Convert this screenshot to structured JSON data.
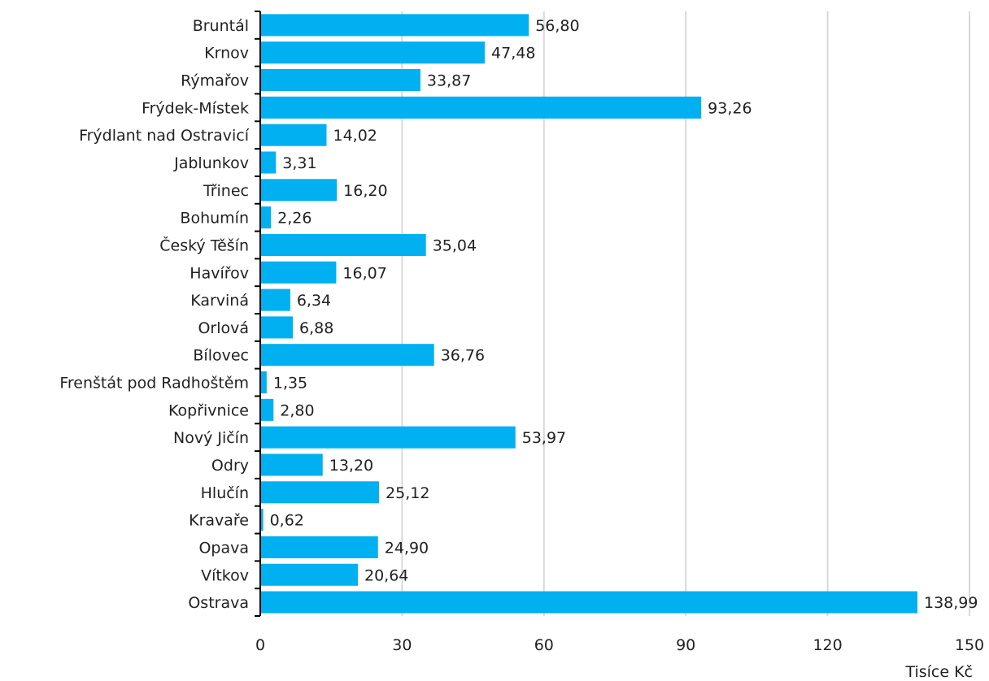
{
  "chart_data": {
    "type": "bar",
    "orientation": "horizontal",
    "categories": [
      "Bruntál",
      "Krnov",
      "Rýmařov",
      "Frýdek-Místek",
      "Frýdlant nad Ostravicí",
      "Jablunkov",
      "Třinec",
      "Bohumín",
      "Český Těšín",
      "Havířov",
      "Karviná",
      "Orlová",
      "Bílovec",
      "Frenštát pod Radhoštěm",
      "Kopřivnice",
      "Nový Jičín",
      "Odry",
      "Hlučín",
      "Kravaře",
      "Opava",
      "Vítkov",
      "Ostrava"
    ],
    "values": [
      56.8,
      47.48,
      33.87,
      93.26,
      14.02,
      3.31,
      16.2,
      2.26,
      35.04,
      16.07,
      6.34,
      6.88,
      36.76,
      1.35,
      2.8,
      53.97,
      13.2,
      25.12,
      0.62,
      24.9,
      20.64,
      138.99
    ],
    "value_labels": [
      "56,80",
      "47,48",
      "33,87",
      "93,26",
      "14,02",
      "3,31",
      "16,20",
      "2,26",
      "35,04",
      "16,07",
      "6,34",
      "6,88",
      "36,76",
      "1,35",
      "2,80",
      "53,97",
      "13,20",
      "25,12",
      "0,62",
      "24,90",
      "20,64",
      "138,99"
    ],
    "xlim": [
      0,
      150
    ],
    "x_ticks": [
      0,
      30,
      60,
      90,
      120,
      150
    ],
    "x_tick_labels": [
      "0",
      "30",
      "60",
      "90",
      "120",
      "150"
    ],
    "xlabel": "Tisíce Kč",
    "ylabel": "",
    "title": "",
    "grid": "vertical",
    "legend": "none",
    "bar_color": "#00B0F0",
    "grid_color": "#D9D9D9",
    "axis_color": "#000000",
    "text_color": "#222222"
  }
}
